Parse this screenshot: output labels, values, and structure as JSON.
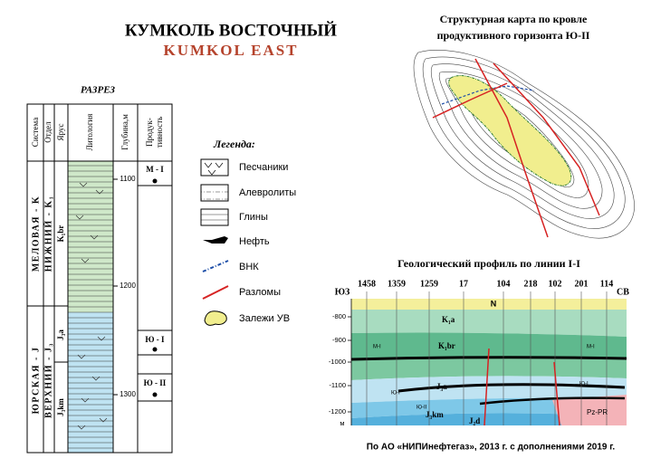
{
  "header": {
    "title": "КУМКОЛЬ ВОСТОЧНЫЙ",
    "subtitle": "KUMKOL EAST"
  },
  "section": {
    "title": "РАЗРЕЗ",
    "columns": [
      "Система",
      "Отдел",
      "Ярус",
      "Литология",
      "Глубина,м"
    ],
    "productivity_header": [
      "Продук-",
      "тивность"
    ],
    "systems": [
      "МЕЛОВАЯ - K",
      "ЮРСКАЯ - J"
    ],
    "series": [
      "НИЖНИЙ - K₁",
      "ВЕРХНИЙ - J₃"
    ],
    "stages": [
      "K₁br",
      "J₃a",
      "J₃km"
    ],
    "depths": [
      "1100",
      "1200",
      "1300"
    ],
    "productivity": [
      "М - I",
      "Ю - I",
      "Ю - II"
    ]
  },
  "legend": {
    "title": "Легенда:",
    "items": [
      "Песчаники",
      "Алевролиты",
      "Глины",
      "Нефть",
      "ВНК",
      "Разломы",
      "Залежи УВ"
    ]
  },
  "map": {
    "title": [
      "Структурная карта по кровле",
      "продуктивного горизонта Ю-II"
    ]
  },
  "profile": {
    "title": "Геологический профиль по линии I-I",
    "directions": [
      "ЮЗ",
      "СВ"
    ],
    "wells": [
      "1458",
      "1359",
      "1259",
      "17",
      "104",
      "218",
      "102",
      "201",
      "114"
    ],
    "marker": "N",
    "depths": [
      "-800",
      "-900",
      "-1000",
      "-1100",
      "-1200"
    ],
    "unit": "м",
    "units": [
      "K₁a",
      "K₁br",
      "М-I",
      "М-I",
      "J₃a",
      "Ю-I",
      "Ю-I",
      "Ю-II",
      "J₃km",
      "J₂d",
      "Pz-PR"
    ]
  },
  "footer": "По  АО «НИПИнефтегаз», 2013 г. с дополнениями 2019 г."
}
